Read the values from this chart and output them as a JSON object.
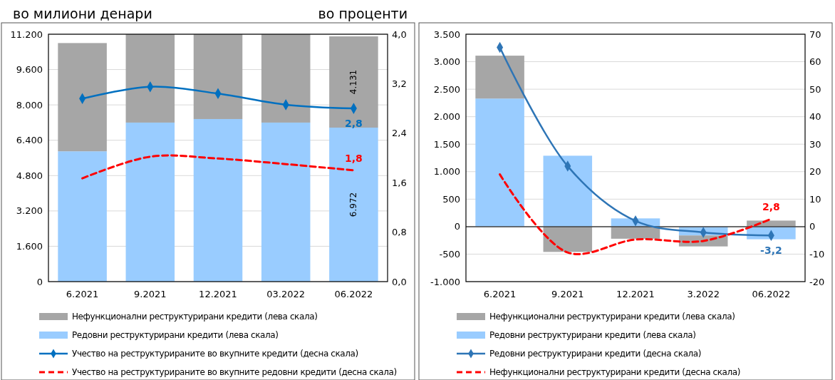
{
  "chart_data": [
    {
      "type": "bar",
      "stacked": true,
      "ylabel": "во милиони денари",
      "y2label": "во проценти",
      "categories": [
        "6.2021",
        "9.2021",
        "12.2021",
        "03.2022",
        "06.2022"
      ],
      "series": [
        {
          "name": "Редовни реструктурирани кредити (лева скала)",
          "color": "#99ccff",
          "values": [
            5900,
            7200,
            7360,
            7200,
            6972
          ],
          "value_labels": [
            null,
            null,
            null,
            null,
            "6.972"
          ]
        },
        {
          "name": "Нефункционални реструктурирани кредити (лева скала)",
          "color": "#a6a6a6",
          "values": [
            4900,
            4000,
            3840,
            4000,
            4131
          ],
          "value_labels": [
            null,
            null,
            null,
            null,
            "4.131"
          ]
        },
        {
          "name": "Учество на реструктурираните во вкупните кредити (десна скала)",
          "type": "line",
          "axis": "y2",
          "color": "#0070c0",
          "marker": "diamond",
          "line_style": "solid",
          "values": [
            2.96,
            3.15,
            3.04,
            2.86,
            2.8
          ],
          "value_labels": [
            null,
            null,
            null,
            null,
            "2,8"
          ]
        },
        {
          "name": "Учество на реструктурираните во вкупните редовни кредити (десна скала)",
          "type": "line",
          "axis": "y2",
          "color": "#ff0000",
          "marker": "none",
          "line_style": "dashed",
          "values": [
            1.67,
            2.02,
            1.99,
            1.9,
            1.8
          ],
          "value_labels": [
            null,
            null,
            null,
            null,
            "1,8"
          ]
        }
      ],
      "ylim": [
        0,
        11200
      ],
      "yticks": [
        0,
        {
          "value": 1600,
          "label": "1.600"
        },
        {
          "value": 3200,
          "label": "3.200"
        },
        {
          "value": 4800,
          "label": "4.800"
        },
        {
          "value": 6400,
          "label": "6.400"
        },
        {
          "value": 8000,
          "label": "8.000"
        },
        {
          "value": 9600,
          "label": "9.600"
        },
        {
          "value": 11200,
          "label": "11.200"
        }
      ],
      "y2lim": [
        0,
        4
      ],
      "y2ticks": [
        {
          "value": 0,
          "label": "0,0"
        },
        {
          "value": 0.8,
          "label": "0,8"
        },
        {
          "value": 1.6,
          "label": "1,6"
        },
        {
          "value": 2.4,
          "label": "2,4"
        },
        {
          "value": 3.2,
          "label": "3,2"
        },
        {
          "value": 4,
          "label": "4,0"
        }
      ],
      "grid": "y",
      "legend": "bottom"
    },
    {
      "type": "bar",
      "stacked": true,
      "categories": [
        "6.2021",
        "9.2021",
        "12.2021",
        "3.2022",
        "06.2022"
      ],
      "series": [
        {
          "name": "Редовни реструктурирани кредити (лева скала)",
          "color": "#99ccff",
          "values": [
            2330,
            1290,
            150,
            -160,
            -230
          ]
        },
        {
          "name": "Нефункционални реструктурирани кредити (лева скала)",
          "color": "#a6a6a6",
          "values": [
            780,
            -460,
            -220,
            -200,
            110
          ]
        },
        {
          "name": "Редовни реструктурирани кредити (десна скала)",
          "type": "line",
          "axis": "y2",
          "color": "#2e75b6",
          "marker": "diamond",
          "line_style": "solid",
          "values": [
            65.2,
            22.0,
            2.1,
            -2.1,
            -3.2
          ],
          "value_labels": [
            null,
            null,
            null,
            null,
            "-3,2"
          ]
        },
        {
          "name": "Нефункционални реструктурирани кредити (десна скала)",
          "type": "line",
          "axis": "y2",
          "color": "#ff0000",
          "marker": "none",
          "line_style": "dashed",
          "values": [
            19.0,
            -9.4,
            -4.7,
            -5.2,
            2.8
          ],
          "value_labels": [
            null,
            null,
            null,
            null,
            "2,8"
          ]
        }
      ],
      "ylim": [
        -1000,
        3500
      ],
      "yticks": [
        {
          "value": -1000,
          "label": "-1.000"
        },
        -500,
        0,
        500,
        {
          "value": 1000,
          "label": "1.000"
        },
        {
          "value": 1500,
          "label": "1.500"
        },
        {
          "value": 2000,
          "label": "2.000"
        },
        {
          "value": 2500,
          "label": "2.500"
        },
        {
          "value": 3000,
          "label": "3.000"
        },
        {
          "value": 3500,
          "label": "3.500"
        }
      ],
      "y2lim": [
        -20,
        70
      ],
      "y2ticks": [
        -20,
        -10,
        0,
        10,
        20,
        30,
        40,
        50,
        60,
        70
      ],
      "grid": "y",
      "legend": "bottom"
    }
  ]
}
